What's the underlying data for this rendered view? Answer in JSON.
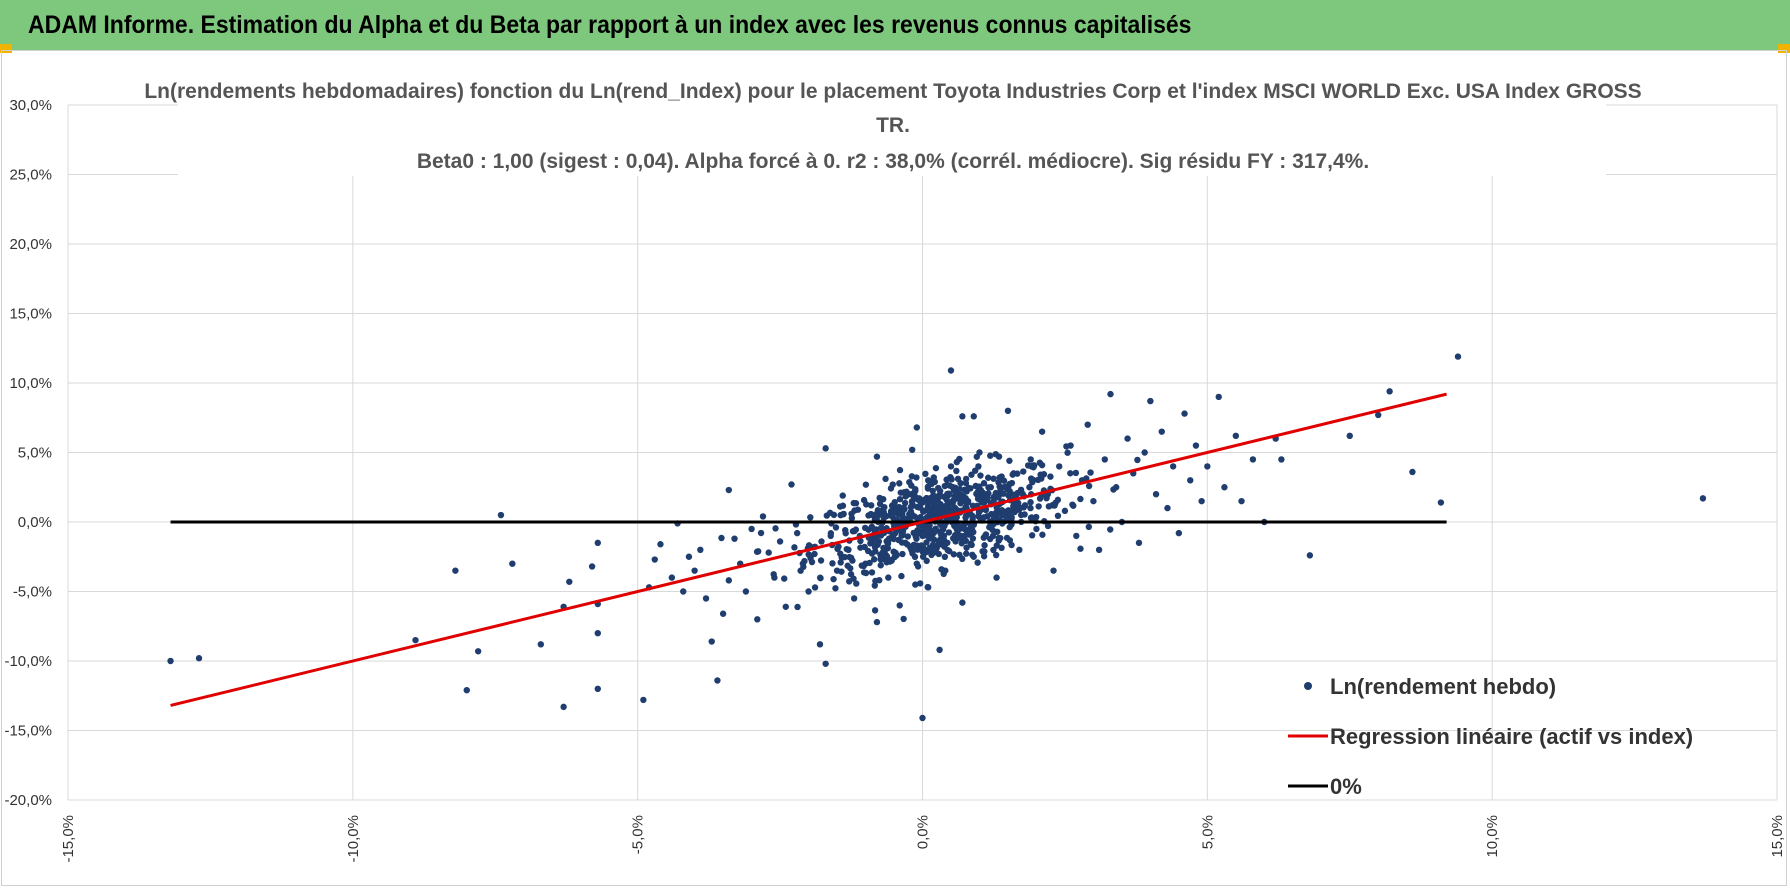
{
  "header": {
    "title": "ADAM Informe. Estimation du Alpha et du Beta par rapport à un index avec les revenus connus capitalisés"
  },
  "colors": {
    "banner": "#7ec87e",
    "points": "#1f3d6e",
    "regression": "#e00000",
    "zero_line": "#000000",
    "corner_accent": "#f0b400"
  },
  "chart_data": {
    "type": "scatter",
    "title_lines": [
      "Ln(rendements hebdomadaires) fonction du Ln(rend_Index) pour le placement Toyota Industries Corp et l'index MSCI WORLD Exc. USA Index GROSS",
      "TR.",
      "Beta0 : 1,00 (sigest : 0,04). Alpha forcé à 0. r2 : 38,0% (corrél. médiocre). Sig résidu FY : 317,4%."
    ],
    "xlim": [
      -0.15,
      0.15
    ],
    "ylim": [
      -0.2,
      0.3
    ],
    "x_ticks": [
      "-15,0%",
      "-10,0%",
      "-5,0%",
      "0,0%",
      "5,0%",
      "10,0%",
      "15,0%"
    ],
    "y_ticks": [
      "30,0%",
      "25,0%",
      "20,0%",
      "15,0%",
      "10,0%",
      "5,0%",
      "0,0%",
      "-5,0%",
      "-10,0%",
      "-15,0%",
      "-20,0%"
    ],
    "grid": true,
    "legend_position": "bottom-right",
    "series": [
      {
        "name": "Ln(rendement hebdo)",
        "kind": "scatter",
        "points": [
          [
            -0.132,
            -0.1
          ],
          [
            -0.127,
            -0.098
          ],
          [
            -0.082,
            -0.035
          ],
          [
            -0.089,
            -0.085
          ],
          [
            -0.08,
            -0.121
          ],
          [
            -0.078,
            -0.093
          ],
          [
            -0.074,
            0.005
          ],
          [
            -0.072,
            -0.03
          ],
          [
            -0.067,
            -0.088
          ],
          [
            -0.063,
            -0.133
          ],
          [
            -0.063,
            -0.061
          ],
          [
            -0.062,
            -0.043
          ],
          [
            -0.057,
            -0.12
          ],
          [
            -0.057,
            -0.08
          ],
          [
            -0.057,
            -0.059
          ],
          [
            -0.057,
            -0.015
          ],
          [
            -0.058,
            -0.032
          ],
          [
            -0.049,
            -0.128
          ],
          [
            -0.048,
            -0.047
          ],
          [
            -0.047,
            -0.027
          ],
          [
            -0.046,
            -0.016
          ],
          [
            -0.044,
            -0.04
          ],
          [
            -0.043,
            -0.001
          ],
          [
            -0.042,
            -0.05
          ],
          [
            -0.041,
            -0.025
          ],
          [
            -0.04,
            -0.035
          ],
          [
            -0.039,
            -0.02
          ],
          [
            -0.038,
            -0.055
          ],
          [
            -0.037,
            -0.086
          ],
          [
            -0.036,
            -0.114
          ],
          [
            -0.035,
            -0.066
          ],
          [
            -0.034,
            -0.042
          ],
          [
            -0.034,
            0.023
          ],
          [
            -0.033,
            -0.012
          ],
          [
            -0.032,
            -0.03
          ],
          [
            -0.031,
            -0.05
          ],
          [
            -0.03,
            -0.005
          ],
          [
            -0.029,
            -0.07
          ],
          [
            -0.028,
            0.004
          ],
          [
            -0.027,
            -0.022
          ],
          [
            -0.026,
            -0.04
          ],
          [
            -0.025,
            -0.014
          ],
          [
            -0.024,
            -0.061
          ],
          [
            -0.023,
            0.027
          ],
          [
            -0.022,
            -0.008
          ],
          [
            -0.021,
            -0.03
          ],
          [
            -0.02,
            -0.05
          ],
          [
            -0.019,
            -0.018
          ],
          [
            -0.018,
            -0.088
          ],
          [
            -0.017,
            -0.102
          ],
          [
            -0.017,
            0.053
          ],
          [
            -0.016,
            -0.001
          ],
          [
            -0.015,
            -0.035
          ],
          [
            -0.014,
            0.019
          ],
          [
            -0.013,
            -0.02
          ],
          [
            -0.012,
            -0.055
          ],
          [
            -0.011,
            -0.01
          ],
          [
            -0.01,
            -0.03
          ],
          [
            -0.009,
            0.012
          ],
          [
            -0.008,
            -0.072
          ],
          [
            -0.008,
            0.047
          ],
          [
            -0.007,
            -0.022
          ],
          [
            -0.006,
            -0.04
          ],
          [
            -0.005,
            0.0
          ],
          [
            -0.004,
            -0.06
          ],
          [
            -0.003,
            -0.015
          ],
          [
            -0.002,
            0.02
          ],
          [
            -0.001,
            -0.03
          ],
          [
            -0.001,
            0.068
          ],
          [
            0.0,
            -0.01
          ],
          [
            0.0,
            -0.141
          ],
          [
            0.001,
            0.03
          ],
          [
            0.001,
            -0.047
          ],
          [
            0.002,
            -0.022
          ],
          [
            0.003,
            0.01
          ],
          [
            0.003,
            -0.092
          ],
          [
            0.004,
            -0.035
          ],
          [
            0.005,
            0.04
          ],
          [
            0.005,
            0.109
          ],
          [
            0.006,
            -0.005
          ],
          [
            0.007,
            -0.058
          ],
          [
            0.007,
            0.076
          ],
          [
            0.008,
            0.015
          ],
          [
            0.009,
            -0.025
          ],
          [
            0.009,
            0.076
          ],
          [
            0.01,
            0.05
          ],
          [
            0.011,
            -0.01
          ],
          [
            0.012,
            0.025
          ],
          [
            0.013,
            -0.04
          ],
          [
            0.014,
            0.005
          ],
          [
            0.015,
            0.08
          ],
          [
            0.016,
            0.035
          ],
          [
            0.017,
            -0.02
          ],
          [
            0.018,
            0.012
          ],
          [
            0.019,
            0.045
          ],
          [
            0.02,
            -0.005
          ],
          [
            0.021,
            0.065
          ],
          [
            0.022,
            0.02
          ],
          [
            0.023,
            -0.035
          ],
          [
            0.024,
            0.04
          ],
          [
            0.025,
            0.008
          ],
          [
            0.026,
            0.055
          ],
          [
            0.027,
            -0.01
          ],
          [
            0.028,
            0.03
          ],
          [
            0.029,
            0.07
          ],
          [
            0.03,
            0.015
          ],
          [
            0.031,
            -0.02
          ],
          [
            0.032,
            0.045
          ],
          [
            0.033,
            0.092
          ],
          [
            0.034,
            0.025
          ],
          [
            0.035,
            0.0
          ],
          [
            0.036,
            0.06
          ],
          [
            0.037,
            0.035
          ],
          [
            0.038,
            -0.015
          ],
          [
            0.039,
            0.05
          ],
          [
            0.04,
            0.087
          ],
          [
            0.041,
            0.02
          ],
          [
            0.042,
            0.065
          ],
          [
            0.043,
            0.01
          ],
          [
            0.044,
            0.04
          ],
          [
            0.045,
            -0.008
          ],
          [
            0.046,
            0.078
          ],
          [
            0.047,
            0.03
          ],
          [
            0.048,
            0.055
          ],
          [
            0.049,
            0.015
          ],
          [
            0.05,
            0.04
          ],
          [
            0.052,
            0.09
          ],
          [
            0.053,
            0.025
          ],
          [
            0.055,
            0.062
          ],
          [
            0.056,
            0.015
          ],
          [
            0.058,
            0.045
          ],
          [
            0.06,
            0.0
          ],
          [
            0.062,
            0.06
          ],
          [
            0.063,
            0.045
          ],
          [
            0.068,
            -0.024
          ],
          [
            0.075,
            0.062
          ],
          [
            0.08,
            0.077
          ],
          [
            0.082,
            0.094
          ],
          [
            0.086,
            0.036
          ],
          [
            0.091,
            0.014
          ],
          [
            0.094,
            0.119
          ],
          [
            0.137,
            0.017
          ]
        ],
        "dense_cluster": {
          "center_x": 0.003,
          "center_y": 0.002,
          "std_x": 0.011,
          "std_y": 0.022,
          "count": 750
        }
      },
      {
        "name": "Regression linéaire (actif vs index)",
        "kind": "line",
        "points": [
          [
            -0.132,
            -0.132
          ],
          [
            0.092,
            0.092
          ]
        ]
      },
      {
        "name": "0%",
        "kind": "line",
        "points": [
          [
            -0.132,
            0.0
          ],
          [
            0.092,
            0.0
          ]
        ]
      }
    ]
  }
}
